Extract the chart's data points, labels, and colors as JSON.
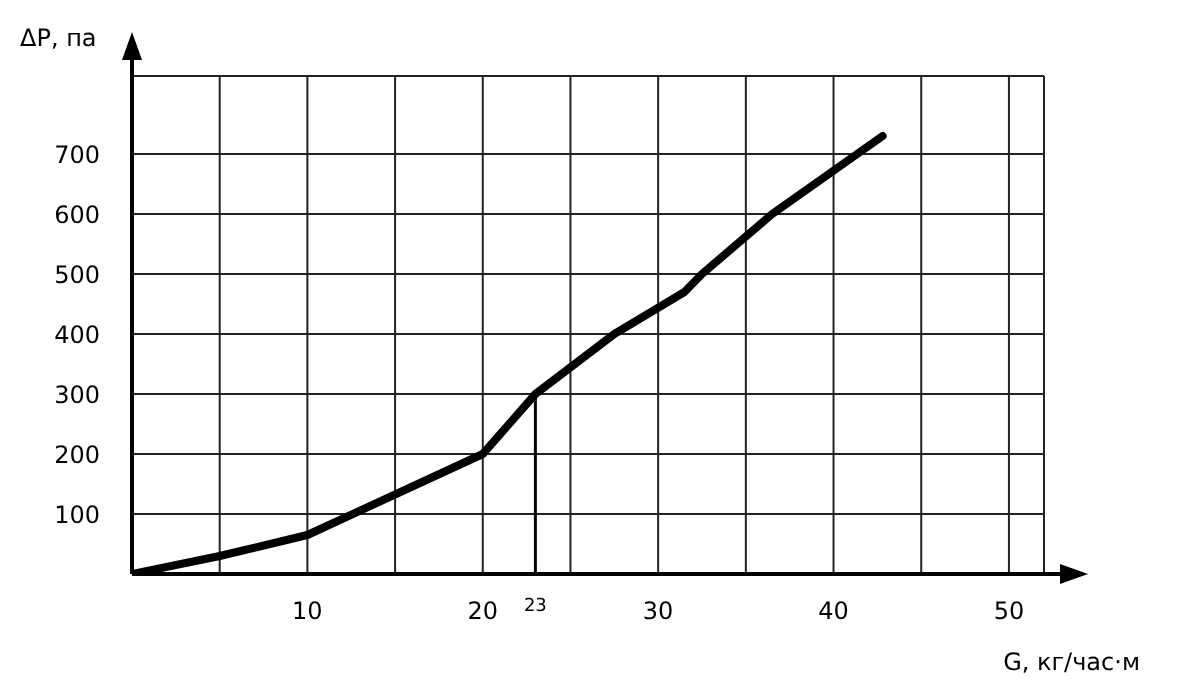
{
  "chart_data": {
    "type": "line",
    "xlabel": "G, кг/час·м",
    "ylabel": "ΔP, па",
    "x": [
      0,
      5,
      10,
      20,
      23,
      27.5,
      31.5,
      32.5,
      36.5,
      42.8
    ],
    "series": [
      {
        "color": "#000000",
        "values": [
          0,
          30,
          65,
          200,
          300,
          400,
          470,
          500,
          600,
          730
        ]
      }
    ],
    "xlim": [
      0,
      52
    ],
    "ylim": [
      0,
      830
    ],
    "xticks": [
      {
        "value": 5,
        "label": null
      },
      10,
      {
        "value": 15,
        "label": null
      },
      20,
      {
        "value": 25,
        "label": null
      },
      30,
      {
        "value": 35,
        "label": null
      },
      40,
      {
        "value": 45,
        "label": null
      },
      50
    ],
    "yticks": [
      100,
      200,
      300,
      400,
      500,
      600,
      700
    ],
    "ref_lines": [
      {
        "axis": "x",
        "value": 23,
        "label": "23",
        "color": "#000000"
      }
    ],
    "grid": true,
    "marker": "none",
    "line_style": "solid"
  }
}
